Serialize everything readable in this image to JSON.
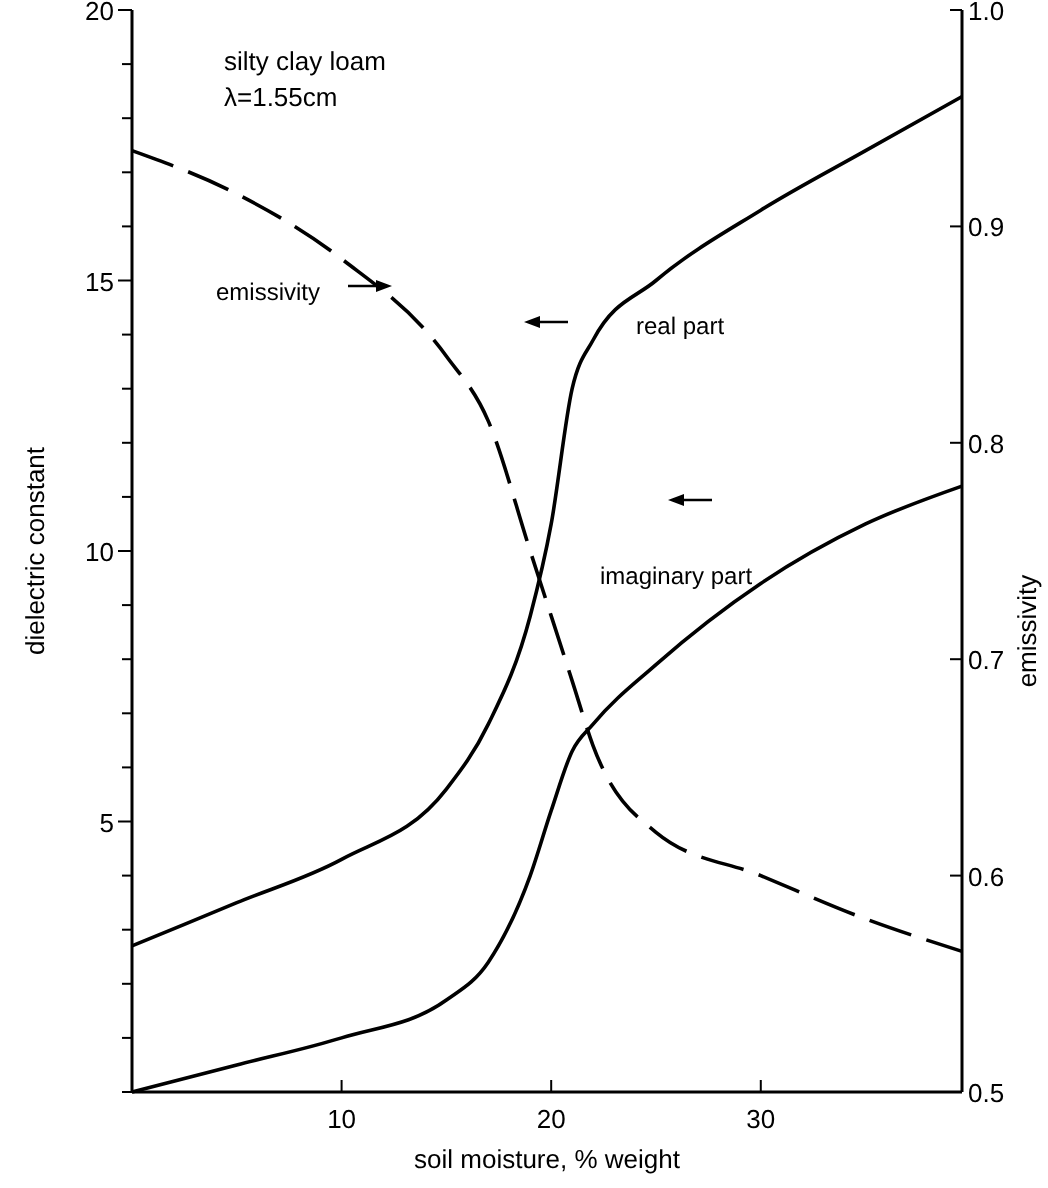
{
  "chart_data": {
    "type": "line",
    "xlabel": "soil moisture, % weight",
    "ylabel": "dielectric constant",
    "y2label": "emissivity",
    "annotations": [
      "silty clay loam",
      "λ=1.55cm"
    ],
    "xlim": [
      0,
      39.6
    ],
    "xticks": [
      {
        "value": 0,
        "label": null
      },
      10,
      20,
      30
    ],
    "ylim": [
      0,
      20
    ],
    "yticks": [
      {
        "value": 0,
        "label": null
      },
      {
        "value": 1,
        "label": null
      },
      {
        "value": 2,
        "label": null
      },
      {
        "value": 3,
        "label": null
      },
      {
        "value": 4,
        "label": null
      },
      5,
      {
        "value": 6,
        "label": null
      },
      {
        "value": 7,
        "label": null
      },
      {
        "value": 8,
        "label": null
      },
      {
        "value": 9,
        "label": null
      },
      10,
      {
        "value": 11,
        "label": null
      },
      {
        "value": 12,
        "label": null
      },
      {
        "value": 13,
        "label": null
      },
      {
        "value": 14,
        "label": null
      },
      15,
      {
        "value": 16,
        "label": null
      },
      {
        "value": 17,
        "label": null
      },
      {
        "value": 18,
        "label": null
      },
      {
        "value": 19,
        "label": null
      },
      20
    ],
    "y2lim": [
      0.5,
      1.0
    ],
    "y2ticks": [
      0.5,
      0.6,
      0.7,
      0.8,
      0.9,
      {
        "value": 1.0,
        "label": "1.0"
      }
    ],
    "x": [
      0,
      5,
      10,
      15,
      17,
      19,
      20,
      21,
      22,
      25,
      30,
      35,
      39.6
    ],
    "grid": false,
    "series": [
      {
        "name": "real part",
        "color": "#000000",
        "line_style": "solid",
        "values": [
          2.7,
          3.5,
          4.3,
          5.6,
          6.8,
          8.8,
          10.5,
          13.0,
          13.9,
          15.0,
          16.3,
          17.4,
          18.4
        ]
      },
      {
        "name": "imaginary part",
        "color": "#000000",
        "line_style": "solid",
        "values": [
          0,
          0.5,
          1.0,
          1.7,
          2.4,
          4.0,
          5.2,
          6.3,
          6.8,
          7.9,
          9.4,
          10.5,
          11.2
        ]
      },
      {
        "name": "emissivity",
        "color": "#000000",
        "line_style": "dashed",
        "axis": "y2",
        "values": [
          0.935,
          0.915,
          0.885,
          0.84,
          0.81,
          0.75,
          0.72,
          0.69,
          0.66,
          0.62,
          0.6,
          0.58,
          0.565
        ]
      }
    ]
  }
}
